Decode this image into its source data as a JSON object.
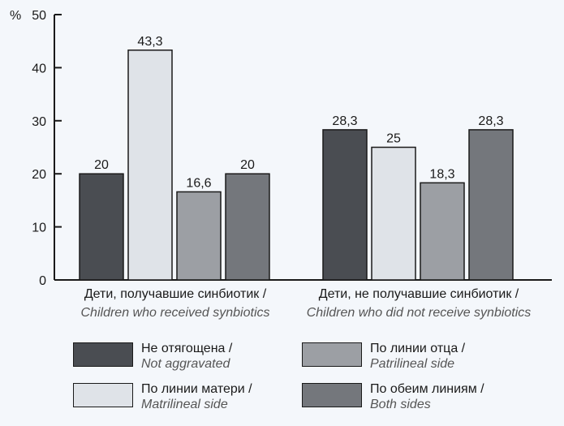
{
  "chart_data": {
    "type": "bar",
    "ylabel": "%",
    "ylim": [
      0,
      50
    ],
    "yticks": [
      0,
      10,
      20,
      30,
      40,
      50
    ],
    "categories": [
      {
        "ru": "Дети, получавшие синбиотик /",
        "en": "Children who received synbiotics"
      },
      {
        "ru": "Дети, не получавшие синбиотик /",
        "en": "Children who did not receive synbiotics"
      }
    ],
    "series": [
      {
        "name_ru": "Не отягощена /",
        "name_en": "Not aggravated",
        "color": "#4a4d52",
        "values": [
          20,
          28.3
        ],
        "labels": [
          "20",
          "28,3"
        ]
      },
      {
        "name_ru": "По линии матери /",
        "name_en": "Matrilineal side",
        "color": "#dfe3e8",
        "values": [
          43.3,
          25
        ],
        "labels": [
          "43,3",
          "25"
        ]
      },
      {
        "name_ru": "По линии отца /",
        "name_en": "Patrilineal side",
        "color": "#9c9fa4",
        "values": [
          16.6,
          18.3
        ],
        "labels": [
          "16,6",
          "18,3"
        ]
      },
      {
        "name_ru": "По обеим линиям /",
        "name_en": "Both sides",
        "color": "#74777c",
        "values": [
          20,
          28.3
        ],
        "labels": [
          "20",
          "28,3"
        ]
      }
    ],
    "grid": false,
    "legend_position": "bottom"
  }
}
